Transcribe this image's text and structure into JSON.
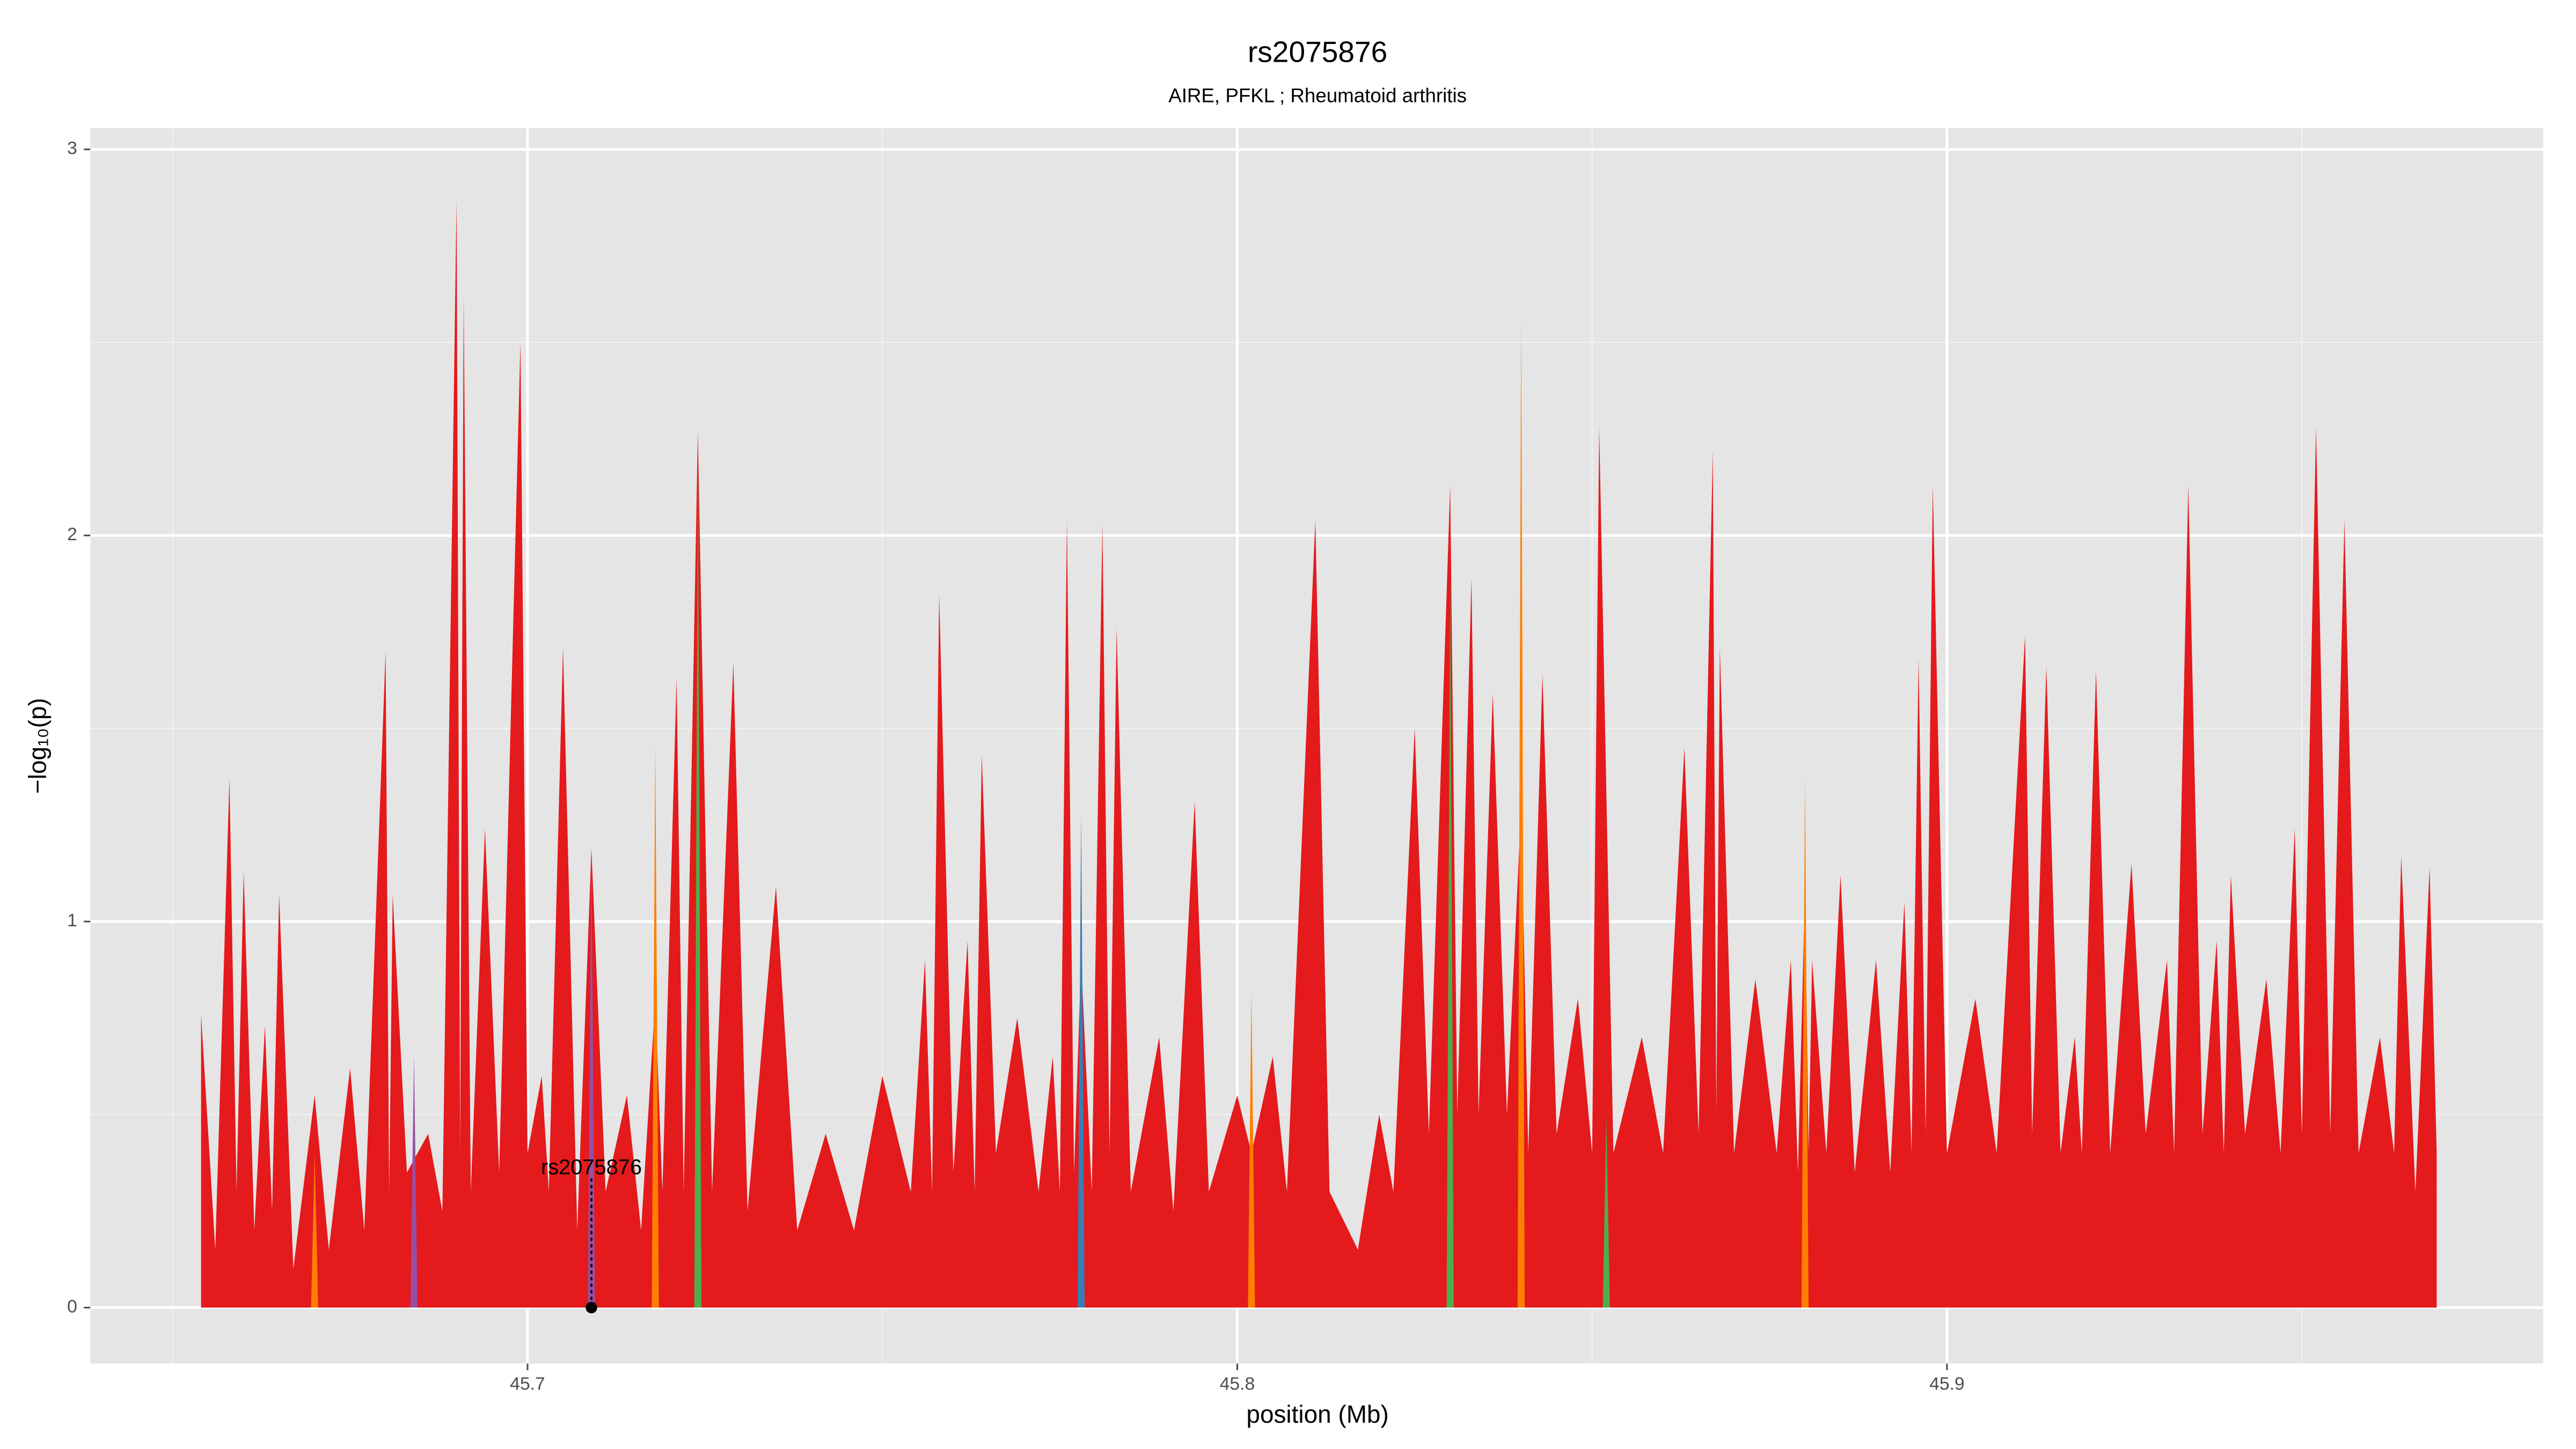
{
  "chart_data": {
    "type": "area",
    "title": "rs2075876",
    "subtitle": "AIRE, PFKL ; Rheumatoid arthritis",
    "x_label": "position (Mb)",
    "y_label": "−log₁₀(p)",
    "xlim": [
      45.6384,
      45.984
    ],
    "ylim": [
      -0.145,
      3.055
    ],
    "xticks": [
      45.7,
      45.8,
      45.9
    ],
    "yticks": [
      0,
      1,
      2,
      3
    ],
    "xminor": [
      45.65,
      45.75,
      45.85,
      45.95
    ],
    "yminor": [
      0.5,
      1.5,
      2.5
    ],
    "grid": true,
    "series": [
      {
        "color": "#e41a1c",
        "x": [
          45.654,
          45.656,
          45.658,
          45.659,
          45.66,
          45.6615,
          45.663,
          45.664,
          45.665,
          45.667,
          45.67,
          45.672,
          45.675,
          45.677,
          45.68,
          45.6805,
          45.681,
          45.683,
          45.686,
          45.688,
          45.69,
          45.6905,
          45.691,
          45.692,
          45.694,
          45.696,
          45.699,
          45.7,
          45.702,
          45.703,
          45.705,
          45.707,
          45.709,
          45.711,
          45.714,
          45.716,
          45.718,
          45.719,
          45.721,
          45.722,
          45.724,
          45.726,
          45.729,
          45.731,
          45.735,
          45.738,
          45.742,
          45.746,
          45.75,
          45.754,
          45.756,
          45.757,
          45.758,
          45.76,
          45.762,
          45.763,
          45.764,
          45.766,
          45.769,
          45.772,
          45.774,
          45.775,
          45.776,
          45.777,
          45.778,
          45.7795,
          45.781,
          45.782,
          45.783,
          45.785,
          45.789,
          45.791,
          45.794,
          45.796,
          45.8,
          45.802,
          45.805,
          45.807,
          45.811,
          45.813,
          45.817,
          45.82,
          45.822,
          45.825,
          45.827,
          45.83,
          45.831,
          45.833,
          45.834,
          45.836,
          45.838,
          45.84,
          45.841,
          45.843,
          45.845,
          45.848,
          45.85,
          45.851,
          45.853,
          45.857,
          45.86,
          45.863,
          45.865,
          45.867,
          45.8675,
          45.868,
          45.87,
          45.873,
          45.876,
          45.878,
          45.879,
          45.88,
          45.8805,
          45.881,
          45.883,
          45.885,
          45.887,
          45.89,
          45.892,
          45.894,
          45.895,
          45.896,
          45.897,
          45.898,
          45.9,
          45.904,
          45.907,
          45.911,
          45.912,
          45.914,
          45.916,
          45.918,
          45.919,
          45.921,
          45.923,
          45.926,
          45.928,
          45.931,
          45.932,
          45.934,
          45.936,
          45.938,
          45.939,
          45.94,
          45.942,
          45.945,
          45.947,
          45.949,
          45.95,
          45.952,
          45.954,
          45.956,
          45.958,
          45.961,
          45.963,
          45.964,
          45.966,
          45.968,
          45.969
        ],
        "values": [
          0.76,
          0.15,
          1.37,
          0.3,
          1.13,
          0.2,
          0.73,
          0.25,
          1.07,
          0.1,
          0.55,
          0.15,
          0.62,
          0.2,
          1.7,
          0.3,
          1.07,
          0.35,
          0.45,
          0.25,
          2.87,
          0.4,
          2.62,
          0.3,
          1.24,
          0.35,
          2.5,
          0.4,
          0.6,
          0.3,
          1.71,
          0.2,
          1.19,
          0.3,
          0.55,
          0.2,
          0.8,
          0.3,
          1.63,
          0.3,
          2.27,
          0.3,
          1.67,
          0.25,
          1.09,
          0.2,
          0.45,
          0.2,
          0.6,
          0.3,
          0.9,
          0.3,
          1.85,
          0.35,
          0.95,
          0.3,
          1.43,
          0.4,
          0.75,
          0.3,
          0.65,
          0.3,
          2.04,
          0.35,
          0.9,
          0.3,
          2.03,
          0.4,
          1.76,
          0.3,
          0.7,
          0.25,
          1.31,
          0.3,
          0.55,
          0.4,
          0.65,
          0.3,
          2.04,
          0.3,
          0.15,
          0.5,
          0.3,
          1.5,
          0.45,
          2.13,
          0.5,
          1.89,
          0.5,
          1.59,
          0.5,
          1.3,
          0.4,
          1.64,
          0.45,
          0.8,
          0.4,
          2.28,
          0.4,
          0.7,
          0.4,
          1.45,
          0.45,
          2.22,
          0.5,
          1.71,
          0.4,
          0.85,
          0.4,
          0.9,
          0.35,
          1.09,
          0.4,
          0.9,
          0.4,
          1.12,
          0.35,
          0.9,
          0.35,
          1.05,
          0.4,
          1.68,
          0.45,
          2.13,
          0.4,
          0.8,
          0.4,
          1.74,
          0.45,
          1.66,
          0.4,
          0.7,
          0.4,
          1.65,
          0.4,
          1.15,
          0.45,
          0.9,
          0.4,
          2.13,
          0.45,
          0.95,
          0.4,
          1.12,
          0.45,
          0.85,
          0.4,
          1.24,
          0.45,
          2.28,
          0.45,
          2.04,
          0.4,
          0.7,
          0.4,
          1.17,
          0.3,
          1.14,
          0.4
        ]
      },
      {
        "color": "#ff7f00",
        "x": [
          45.6695,
          45.67,
          45.6705,
          45.7175,
          45.718,
          45.7185,
          45.8015,
          45.802,
          45.8025,
          45.8395,
          45.84,
          45.8405,
          45.8795,
          45.88,
          45.8805
        ],
        "values": [
          0,
          0.4,
          0,
          0,
          1.46,
          0,
          0,
          0.82,
          0,
          0,
          2.56,
          0,
          0,
          1.37,
          0
        ]
      },
      {
        "color": "#4daf4a",
        "x": [
          45.7235,
          45.724,
          45.7245,
          45.8295,
          45.83,
          45.8305,
          45.8515,
          45.852,
          45.8525
        ],
        "values": [
          0,
          2.2,
          0,
          0,
          1.9,
          0,
          0,
          0.5,
          0
        ]
      },
      {
        "color": "#377eb8",
        "x": [
          45.7775,
          45.778,
          45.7785
        ],
        "values": [
          0,
          1.28,
          0
        ]
      },
      {
        "color": "#984ea3",
        "x": [
          45.6835,
          45.684,
          45.6845,
          45.7085,
          45.709,
          45.7095
        ],
        "values": [
          0,
          0.65,
          0,
          0,
          1.19,
          0
        ]
      }
    ],
    "annotation": {
      "text": "rs2075876",
      "x": 45.709,
      "y": 0.36
    },
    "point": {
      "x": 45.709,
      "y": 0
    }
  }
}
